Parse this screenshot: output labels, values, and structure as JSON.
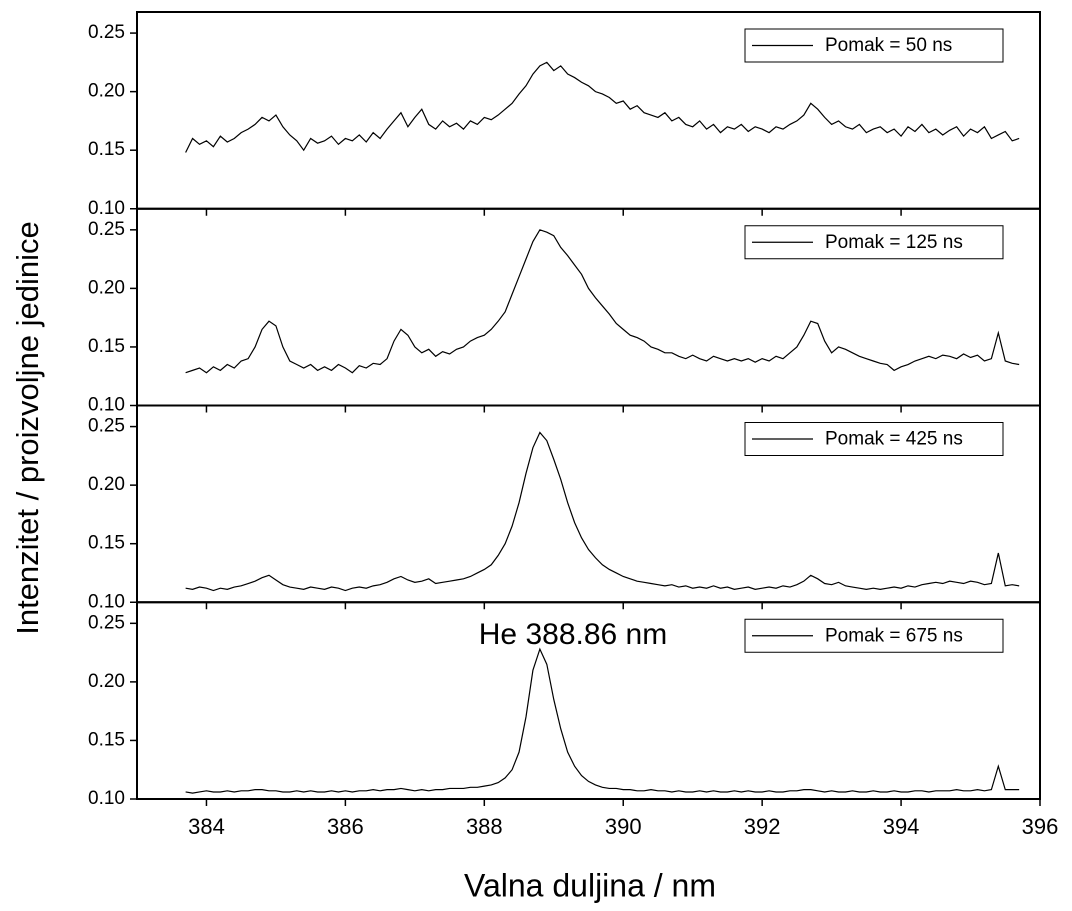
{
  "chart_data": [
    {
      "type": "line",
      "ylabel": "Intenzitet / proizvoljne jedinice",
      "xlim": [
        383,
        396
      ],
      "xticks": [
        384,
        386,
        388,
        390,
        392,
        394,
        396
      ],
      "ylim": [
        0.1,
        0.268
      ],
      "yticks": [
        {
          "value": 0.1,
          "label": "0.10"
        },
        0.15,
        {
          "value": 0.2,
          "label": "0.20"
        },
        0.25
      ],
      "x": [
        383.7,
        383.8,
        383.9,
        384.0,
        384.1,
        384.2,
        384.3,
        384.4,
        384.5,
        384.6,
        384.7,
        384.8,
        384.9,
        385.0,
        385.1,
        385.2,
        385.3,
        385.4,
        385.5,
        385.6,
        385.7,
        385.8,
        385.9,
        386.0,
        386.1,
        386.2,
        386.3,
        386.4,
        386.5,
        386.6,
        386.7,
        386.8,
        386.9,
        387.0,
        387.1,
        387.2,
        387.3,
        387.4,
        387.5,
        387.6,
        387.7,
        387.8,
        387.9,
        388.0,
        388.1,
        388.2,
        388.3,
        388.4,
        388.5,
        388.6,
        388.7,
        388.8,
        388.9,
        389.0,
        389.1,
        389.2,
        389.3,
        389.4,
        389.5,
        389.6,
        389.7,
        389.8,
        389.9,
        390.0,
        390.1,
        390.2,
        390.3,
        390.4,
        390.5,
        390.6,
        390.7,
        390.8,
        390.9,
        391.0,
        391.1,
        391.2,
        391.3,
        391.4,
        391.5,
        391.6,
        391.7,
        391.8,
        391.9,
        392.0,
        392.1,
        392.2,
        392.3,
        392.4,
        392.5,
        392.6,
        392.7,
        392.8,
        392.9,
        393.0,
        393.1,
        393.2,
        393.3,
        393.4,
        393.5,
        393.6,
        393.7,
        393.8,
        393.9,
        394.0,
        394.1,
        394.2,
        394.3,
        394.4,
        394.5,
        394.6,
        394.7,
        394.8,
        394.9,
        395.0,
        395.1,
        395.2,
        395.3,
        395.4,
        395.5,
        395.6,
        395.7
      ],
      "series": [
        {
          "name": "Pomak = 50 ns",
          "color": "#000000",
          "values": [
            0.148,
            0.16,
            0.155,
            0.158,
            0.153,
            0.162,
            0.157,
            0.16,
            0.165,
            0.168,
            0.172,
            0.178,
            0.175,
            0.18,
            0.17,
            0.163,
            0.158,
            0.15,
            0.16,
            0.156,
            0.158,
            0.162,
            0.155,
            0.16,
            0.158,
            0.163,
            0.157,
            0.165,
            0.16,
            0.168,
            0.175,
            0.182,
            0.17,
            0.178,
            0.185,
            0.172,
            0.168,
            0.175,
            0.17,
            0.173,
            0.168,
            0.175,
            0.172,
            0.178,
            0.176,
            0.18,
            0.185,
            0.19,
            0.198,
            0.205,
            0.215,
            0.222,
            0.225,
            0.218,
            0.222,
            0.215,
            0.212,
            0.208,
            0.205,
            0.2,
            0.198,
            0.195,
            0.19,
            0.192,
            0.185,
            0.188,
            0.182,
            0.18,
            0.178,
            0.182,
            0.175,
            0.178,
            0.172,
            0.17,
            0.175,
            0.168,
            0.172,
            0.165,
            0.17,
            0.168,
            0.172,
            0.166,
            0.17,
            0.168,
            0.165,
            0.17,
            0.168,
            0.172,
            0.175,
            0.18,
            0.19,
            0.185,
            0.178,
            0.172,
            0.175,
            0.17,
            0.168,
            0.172,
            0.165,
            0.168,
            0.17,
            0.165,
            0.168,
            0.162,
            0.17,
            0.166,
            0.172,
            0.165,
            0.168,
            0.163,
            0.167,
            0.17,
            0.162,
            0.168,
            0.165,
            0.17,
            0.16,
            0.163,
            0.166,
            0.158,
            0.16
          ]
        }
      ]
    },
    {
      "type": "line",
      "xlim": [
        383,
        396
      ],
      "xticks": [
        384,
        386,
        388,
        390,
        392,
        394,
        396
      ],
      "ylim": [
        0.1,
        0.268
      ],
      "yticks": [
        {
          "value": 0.1,
          "label": "0.10"
        },
        0.15,
        {
          "value": 0.2,
          "label": "0.20"
        },
        0.25
      ],
      "x": [
        383.7,
        383.8,
        383.9,
        384.0,
        384.1,
        384.2,
        384.3,
        384.4,
        384.5,
        384.6,
        384.7,
        384.8,
        384.9,
        385.0,
        385.1,
        385.2,
        385.3,
        385.4,
        385.5,
        385.6,
        385.7,
        385.8,
        385.9,
        386.0,
        386.1,
        386.2,
        386.3,
        386.4,
        386.5,
        386.6,
        386.7,
        386.8,
        386.9,
        387.0,
        387.1,
        387.2,
        387.3,
        387.4,
        387.5,
        387.6,
        387.7,
        387.8,
        387.9,
        388.0,
        388.1,
        388.2,
        388.3,
        388.4,
        388.5,
        388.6,
        388.7,
        388.8,
        388.9,
        389.0,
        389.1,
        389.2,
        389.3,
        389.4,
        389.5,
        389.6,
        389.7,
        389.8,
        389.9,
        390.0,
        390.1,
        390.2,
        390.3,
        390.4,
        390.5,
        390.6,
        390.7,
        390.8,
        390.9,
        391.0,
        391.1,
        391.2,
        391.3,
        391.4,
        391.5,
        391.6,
        391.7,
        391.8,
        391.9,
        392.0,
        392.1,
        392.2,
        392.3,
        392.4,
        392.5,
        392.6,
        392.7,
        392.8,
        392.9,
        393.0,
        393.1,
        393.2,
        393.3,
        393.4,
        393.5,
        393.6,
        393.7,
        393.8,
        393.9,
        394.0,
        394.1,
        394.2,
        394.3,
        394.4,
        394.5,
        394.6,
        394.7,
        394.8,
        394.9,
        395.0,
        395.1,
        395.2,
        395.3,
        395.4,
        395.5,
        395.6,
        395.7
      ],
      "series": [
        {
          "name": "Pomak = 125 ns",
          "color": "#000000",
          "values": [
            0.128,
            0.13,
            0.132,
            0.128,
            0.133,
            0.13,
            0.135,
            0.132,
            0.138,
            0.14,
            0.15,
            0.165,
            0.172,
            0.168,
            0.15,
            0.138,
            0.135,
            0.132,
            0.135,
            0.13,
            0.133,
            0.13,
            0.135,
            0.132,
            0.128,
            0.134,
            0.132,
            0.136,
            0.135,
            0.14,
            0.155,
            0.165,
            0.16,
            0.15,
            0.145,
            0.148,
            0.142,
            0.146,
            0.144,
            0.148,
            0.15,
            0.155,
            0.158,
            0.16,
            0.165,
            0.172,
            0.18,
            0.195,
            0.21,
            0.225,
            0.24,
            0.25,
            0.248,
            0.245,
            0.235,
            0.228,
            0.22,
            0.212,
            0.2,
            0.192,
            0.185,
            0.178,
            0.17,
            0.165,
            0.16,
            0.158,
            0.155,
            0.15,
            0.148,
            0.145,
            0.145,
            0.142,
            0.14,
            0.143,
            0.14,
            0.138,
            0.142,
            0.14,
            0.138,
            0.14,
            0.138,
            0.14,
            0.137,
            0.14,
            0.138,
            0.142,
            0.14,
            0.145,
            0.15,
            0.16,
            0.172,
            0.17,
            0.155,
            0.145,
            0.15,
            0.148,
            0.145,
            0.142,
            0.14,
            0.138,
            0.136,
            0.135,
            0.13,
            0.133,
            0.135,
            0.138,
            0.14,
            0.142,
            0.14,
            0.143,
            0.142,
            0.14,
            0.144,
            0.141,
            0.143,
            0.138,
            0.14,
            0.162,
            0.138,
            0.136,
            0.135
          ]
        }
      ]
    },
    {
      "type": "line",
      "xlim": [
        383,
        396
      ],
      "xticks": [
        384,
        386,
        388,
        390,
        392,
        394,
        396
      ],
      "ylim": [
        0.1,
        0.268
      ],
      "yticks": [
        {
          "value": 0.1,
          "label": "0.10"
        },
        0.15,
        {
          "value": 0.2,
          "label": "0.20"
        },
        0.25
      ],
      "x": [
        383.7,
        383.8,
        383.9,
        384.0,
        384.1,
        384.2,
        384.3,
        384.4,
        384.5,
        384.6,
        384.7,
        384.8,
        384.9,
        385.0,
        385.1,
        385.2,
        385.3,
        385.4,
        385.5,
        385.6,
        385.7,
        385.8,
        385.9,
        386.0,
        386.1,
        386.2,
        386.3,
        386.4,
        386.5,
        386.6,
        386.7,
        386.8,
        386.9,
        387.0,
        387.1,
        387.2,
        387.3,
        387.4,
        387.5,
        387.6,
        387.7,
        387.8,
        387.9,
        388.0,
        388.1,
        388.2,
        388.3,
        388.4,
        388.5,
        388.6,
        388.7,
        388.8,
        388.9,
        389.0,
        389.1,
        389.2,
        389.3,
        389.4,
        389.5,
        389.6,
        389.7,
        389.8,
        389.9,
        390.0,
        390.1,
        390.2,
        390.3,
        390.4,
        390.5,
        390.6,
        390.7,
        390.8,
        390.9,
        391.0,
        391.1,
        391.2,
        391.3,
        391.4,
        391.5,
        391.6,
        391.7,
        391.8,
        391.9,
        392.0,
        392.1,
        392.2,
        392.3,
        392.4,
        392.5,
        392.6,
        392.7,
        392.8,
        392.9,
        393.0,
        393.1,
        393.2,
        393.3,
        393.4,
        393.5,
        393.6,
        393.7,
        393.8,
        393.9,
        394.0,
        394.1,
        394.2,
        394.3,
        394.4,
        394.5,
        394.6,
        394.7,
        394.8,
        394.9,
        395.0,
        395.1,
        395.2,
        395.3,
        395.4,
        395.5,
        395.6,
        395.7
      ],
      "series": [
        {
          "name": "Pomak = 425 ns",
          "color": "#000000",
          "values": [
            0.112,
            0.111,
            0.113,
            0.112,
            0.11,
            0.112,
            0.111,
            0.113,
            0.114,
            0.116,
            0.118,
            0.121,
            0.123,
            0.119,
            0.115,
            0.113,
            0.112,
            0.111,
            0.113,
            0.112,
            0.111,
            0.113,
            0.112,
            0.11,
            0.112,
            0.113,
            0.112,
            0.114,
            0.115,
            0.117,
            0.12,
            0.122,
            0.119,
            0.117,
            0.118,
            0.12,
            0.116,
            0.117,
            0.118,
            0.119,
            0.12,
            0.122,
            0.125,
            0.128,
            0.132,
            0.14,
            0.15,
            0.165,
            0.185,
            0.21,
            0.232,
            0.245,
            0.238,
            0.222,
            0.205,
            0.185,
            0.168,
            0.155,
            0.145,
            0.138,
            0.132,
            0.128,
            0.125,
            0.122,
            0.12,
            0.118,
            0.117,
            0.116,
            0.115,
            0.114,
            0.115,
            0.113,
            0.114,
            0.112,
            0.113,
            0.112,
            0.114,
            0.112,
            0.113,
            0.111,
            0.112,
            0.113,
            0.111,
            0.112,
            0.113,
            0.112,
            0.114,
            0.113,
            0.115,
            0.118,
            0.123,
            0.12,
            0.116,
            0.115,
            0.117,
            0.114,
            0.113,
            0.112,
            0.111,
            0.112,
            0.111,
            0.112,
            0.113,
            0.112,
            0.114,
            0.113,
            0.115,
            0.116,
            0.117,
            0.116,
            0.118,
            0.117,
            0.116,
            0.118,
            0.117,
            0.115,
            0.116,
            0.142,
            0.114,
            0.115,
            0.114
          ]
        }
      ]
    },
    {
      "type": "line",
      "xlabel": "Valna duljina / nm",
      "annotation": "He 388.86 nm",
      "xlim": [
        383,
        396
      ],
      "xticks": [
        384,
        386,
        388,
        390,
        392,
        394,
        396
      ],
      "ylim": [
        0.1,
        0.268
      ],
      "yticks": [
        {
          "value": 0.1,
          "label": "0.10"
        },
        0.15,
        {
          "value": 0.2,
          "label": "0.20"
        },
        0.25
      ],
      "x": [
        383.7,
        383.8,
        383.9,
        384.0,
        384.1,
        384.2,
        384.3,
        384.4,
        384.5,
        384.6,
        384.7,
        384.8,
        384.9,
        385.0,
        385.1,
        385.2,
        385.3,
        385.4,
        385.5,
        385.6,
        385.7,
        385.8,
        385.9,
        386.0,
        386.1,
        386.2,
        386.3,
        386.4,
        386.5,
        386.6,
        386.7,
        386.8,
        386.9,
        387.0,
        387.1,
        387.2,
        387.3,
        387.4,
        387.5,
        387.6,
        387.7,
        387.8,
        387.9,
        388.0,
        388.1,
        388.2,
        388.3,
        388.4,
        388.5,
        388.6,
        388.7,
        388.8,
        388.9,
        389.0,
        389.1,
        389.2,
        389.3,
        389.4,
        389.5,
        389.6,
        389.7,
        389.8,
        389.9,
        390.0,
        390.1,
        390.2,
        390.3,
        390.4,
        390.5,
        390.6,
        390.7,
        390.8,
        390.9,
        391.0,
        391.1,
        391.2,
        391.3,
        391.4,
        391.5,
        391.6,
        391.7,
        391.8,
        391.9,
        392.0,
        392.1,
        392.2,
        392.3,
        392.4,
        392.5,
        392.6,
        392.7,
        392.8,
        392.9,
        393.0,
        393.1,
        393.2,
        393.3,
        393.4,
        393.5,
        393.6,
        393.7,
        393.8,
        393.9,
        394.0,
        394.1,
        394.2,
        394.3,
        394.4,
        394.5,
        394.6,
        394.7,
        394.8,
        394.9,
        395.0,
        395.1,
        395.2,
        395.3,
        395.4,
        395.5,
        395.6,
        395.7
      ],
      "series": [
        {
          "name": "Pomak = 675 ns",
          "color": "#000000",
          "values": [
            0.106,
            0.105,
            0.106,
            0.107,
            0.106,
            0.106,
            0.107,
            0.106,
            0.107,
            0.107,
            0.108,
            0.108,
            0.107,
            0.107,
            0.106,
            0.106,
            0.107,
            0.106,
            0.107,
            0.106,
            0.106,
            0.107,
            0.106,
            0.107,
            0.106,
            0.107,
            0.107,
            0.108,
            0.107,
            0.108,
            0.108,
            0.109,
            0.108,
            0.107,
            0.108,
            0.107,
            0.108,
            0.108,
            0.109,
            0.109,
            0.109,
            0.11,
            0.11,
            0.111,
            0.112,
            0.114,
            0.118,
            0.125,
            0.14,
            0.17,
            0.21,
            0.228,
            0.215,
            0.185,
            0.16,
            0.14,
            0.128,
            0.12,
            0.115,
            0.112,
            0.11,
            0.109,
            0.109,
            0.108,
            0.108,
            0.107,
            0.107,
            0.108,
            0.107,
            0.107,
            0.106,
            0.107,
            0.106,
            0.106,
            0.107,
            0.106,
            0.107,
            0.106,
            0.106,
            0.107,
            0.106,
            0.107,
            0.106,
            0.106,
            0.107,
            0.106,
            0.106,
            0.107,
            0.107,
            0.108,
            0.108,
            0.107,
            0.106,
            0.107,
            0.106,
            0.106,
            0.107,
            0.106,
            0.106,
            0.107,
            0.106,
            0.106,
            0.107,
            0.106,
            0.106,
            0.107,
            0.107,
            0.106,
            0.107,
            0.107,
            0.107,
            0.108,
            0.107,
            0.107,
            0.108,
            0.107,
            0.108,
            0.128,
            0.108,
            0.108,
            0.108
          ]
        }
      ]
    }
  ]
}
